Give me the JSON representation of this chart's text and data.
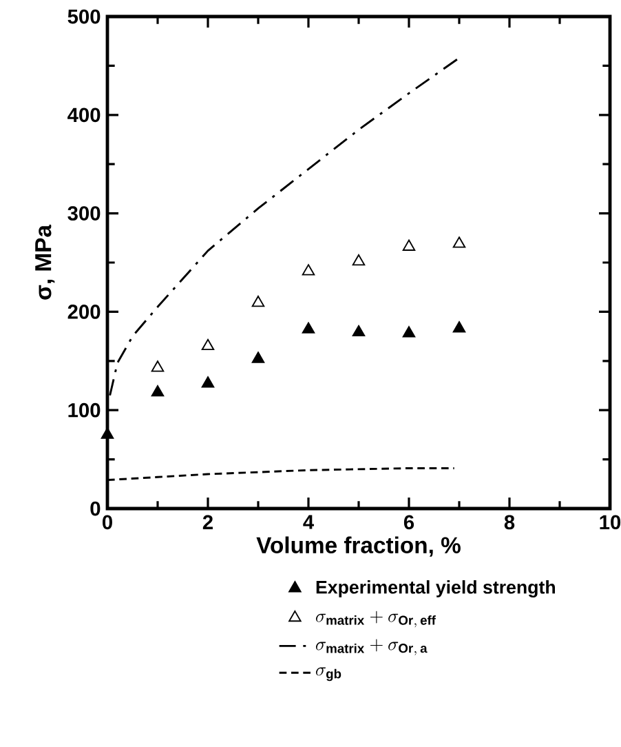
{
  "chart_data": {
    "type": "scatter",
    "xlabel": "Volume fraction, %",
    "ylabel": "σ, MPa",
    "xlim": [
      0,
      10
    ],
    "ylim": [
      0,
      500
    ],
    "xticks": [
      0,
      2,
      4,
      6,
      8,
      10
    ],
    "yticks": [
      0,
      100,
      200,
      300,
      400,
      500
    ],
    "legend": "bottom",
    "grid": false,
    "series": [
      {
        "name": "Experimental yield strength",
        "marker": "triangle",
        "color": "#000000",
        "x": [
          0,
          1,
          2,
          3,
          4,
          5,
          6,
          7
        ],
        "values": [
          75,
          118,
          127,
          152,
          182,
          179,
          178,
          183
        ]
      },
      {
        "name": "\\sigma_{\\mathbf{matrix}} + \\sigma_{\\mathbf{Or,\\,eff}}",
        "marker": "triangle-open",
        "color": "#000000",
        "x": [
          1,
          2,
          3,
          4,
          5,
          6,
          7
        ],
        "values": [
          143,
          165,
          209,
          241,
          251,
          266,
          269
        ]
      },
      {
        "name": "\\sigma_{\\mathbf{matrix}} + \\sigma_{\\mathbf{Or,\\,a}}",
        "type": "line",
        "line_style": "dashdot",
        "marker": "none",
        "color": "#000000",
        "x": [
          0.05,
          0.2,
          0.5,
          1,
          2,
          3,
          4,
          5,
          6,
          7
        ],
        "values": [
          115,
          148,
          175,
          205,
          262,
          305,
          345,
          385,
          422,
          458
        ]
      },
      {
        "name": "\\sigma_{\\mathbf{gb}}",
        "type": "line",
        "line_style": "dashed",
        "marker": "none",
        "color": "#000000",
        "x": [
          0,
          1,
          2,
          3,
          4,
          5,
          6,
          6.9
        ],
        "values": [
          29,
          32,
          35,
          37,
          39,
          40,
          41,
          41
        ]
      }
    ]
  }
}
